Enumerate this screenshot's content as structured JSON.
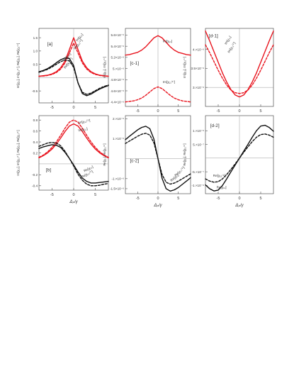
{
  "colors": {
    "red": "#e8141e",
    "black": "#111111",
    "axis": "#333333",
    "ref": "#999999"
  },
  "chart_data": [
    {
      "id": "a",
      "type": "line",
      "label": "[a]",
      "ylabel": "Im[χ₁₁], Im[χ₁₁⁽¹⁾], Re[χ₁₁], Re[χ₁₁⁽¹⁾]",
      "xlabel": "",
      "xlim": [
        -8,
        8
      ],
      "ylim": [
        -0.95,
        1.85
      ],
      "xticks": [
        -5,
        0,
        5
      ],
      "yticks": [
        1.5,
        1.0,
        0.5,
        -0.5
      ],
      "ytick_labels": [
        "1.5",
        "1.0",
        "0.5",
        "-0.5"
      ],
      "refline_y": 0.0,
      "series": [
        {
          "name": "Im[χ₁₁]",
          "color": "red",
          "dash": false,
          "x": [
            -8,
            -7,
            -6,
            -5,
            -4,
            -3,
            -2,
            -1,
            0,
            1,
            2,
            3,
            4,
            5,
            6,
            7,
            8
          ],
          "y": [
            0.05,
            0.07,
            0.09,
            0.14,
            0.22,
            0.37,
            0.62,
            1.05,
            1.5,
            1.05,
            0.62,
            0.37,
            0.22,
            0.14,
            0.09,
            0.07,
            0.05
          ]
        },
        {
          "name": "Im[χ₁₁⁽¹⁾]",
          "color": "red",
          "dash": true,
          "x": [
            -8,
            -7,
            -6,
            -5,
            -4,
            -3,
            -2,
            -1,
            0,
            1,
            2,
            3,
            4,
            5,
            6,
            7,
            8
          ],
          "y": [
            0.05,
            0.06,
            0.08,
            0.12,
            0.19,
            0.32,
            0.55,
            0.92,
            1.3,
            0.92,
            0.55,
            0.32,
            0.19,
            0.12,
            0.08,
            0.06,
            0.05
          ]
        },
        {
          "name": "Re[χ₁₁]",
          "color": "black",
          "dash": false,
          "x": [
            -8,
            -7,
            -6,
            -5,
            -4,
            -3,
            -2,
            -1,
            0,
            1,
            2,
            3,
            4,
            5,
            6,
            7,
            8
          ],
          "y": [
            0.22,
            0.27,
            0.34,
            0.44,
            0.56,
            0.67,
            0.74,
            0.72,
            0.45,
            -0.2,
            -0.6,
            -0.68,
            -0.62,
            -0.52,
            -0.43,
            -0.36,
            -0.3
          ]
        },
        {
          "name": "Re[χ₁₁⁽¹⁾]",
          "color": "black",
          "dash": true,
          "x": [
            -8,
            -7,
            -6,
            -5,
            -4,
            -3,
            -2,
            -1,
            0,
            1,
            2,
            3,
            4,
            5,
            6,
            7,
            8
          ],
          "y": [
            0.2,
            0.25,
            0.31,
            0.4,
            0.5,
            0.6,
            0.66,
            0.63,
            0.38,
            -0.2,
            -0.55,
            -0.63,
            -0.58,
            -0.49,
            -0.4,
            -0.33,
            -0.28
          ]
        }
      ],
      "annotations": [
        {
          "text": "Im[χ₁₁]",
          "x": 0.8,
          "y": 1.35,
          "angle": -50
        },
        {
          "text": "Im[χ₁₁⁽¹⁾]",
          "x": 0.3,
          "y": 1.05,
          "angle": -50
        },
        {
          "text": "Re[χ₁₁]",
          "x": -2.2,
          "y": 0.62,
          "angle": -45
        },
        {
          "text": "Re[χ₁₁⁽¹⁾]",
          "x": -1.9,
          "y": 0.33,
          "angle": -55
        }
      ]
    },
    {
      "id": "c1",
      "type": "line",
      "label": "[c-1]",
      "ylabel": "Im[χ₁₁], Im[χ₁₁⁽¹⁾]",
      "xlabel": "",
      "xlim": [
        -8,
        8
      ],
      "ylim": [
        4.32e-06,
        5.72e-06
      ],
      "xticks": [
        -5,
        0,
        5
      ],
      "yticks": [
        5.6e-06,
        5.4e-06,
        5.2e-06,
        5e-06,
        4.8e-06,
        4.6e-06,
        4.4e-06
      ],
      "ytick_labels": [
        "5.6×10⁻⁶",
        "5.4×10⁻⁶",
        "5.2×10⁻⁶",
        "5.×10⁻⁶",
        "4.8×10⁻⁶",
        "4.6×10⁻⁶",
        "4.4×10⁻⁶"
      ],
      "refline_y": null,
      "series": [
        {
          "name": "Im[χ₁₁]",
          "color": "red",
          "dash": false,
          "x": [
            -8,
            -7,
            -6,
            -5,
            -4,
            -3,
            -2,
            -1,
            0,
            1,
            2,
            3,
            4,
            5,
            6,
            7,
            8
          ],
          "y": [
            5.24e-06,
            5.25e-06,
            5.27e-06,
            5.29e-06,
            5.33e-06,
            5.39e-06,
            5.47e-06,
            5.55e-06,
            5.59e-06,
            5.55e-06,
            5.47e-06,
            5.39e-06,
            5.33e-06,
            5.29e-06,
            5.27e-06,
            5.25e-06,
            5.24e-06
          ]
        },
        {
          "name": "Im[χ₁₁⁽¹⁾]",
          "color": "red",
          "dash": true,
          "x": [
            -8,
            -7,
            -6,
            -5,
            -4,
            -3,
            -2,
            -1,
            0,
            1,
            2,
            3,
            4,
            5,
            6,
            7,
            8
          ],
          "y": [
            4.4e-06,
            4.41e-06,
            4.42e-06,
            4.44e-06,
            4.47e-06,
            4.52e-06,
            4.58e-06,
            4.64e-06,
            4.67e-06,
            4.64e-06,
            4.58e-06,
            4.52e-06,
            4.47e-06,
            4.44e-06,
            4.42e-06,
            4.41e-06,
            4.4e-06
          ]
        }
      ],
      "annotations": [
        {
          "text": "Im[χ₁₁]",
          "x": 1.2,
          "y": 5.47e-06,
          "angle": 0
        },
        {
          "text": "Im[χ₁₁⁽¹⁾]",
          "x": 1.2,
          "y": 4.74e-06,
          "angle": 0
        }
      ]
    },
    {
      "id": "d1",
      "type": "line",
      "label": "[d-1]",
      "ylabel": "Im[χ₁₁], Im[χ₁₁⁽¹⁾]",
      "xlabel": "",
      "xlim": [
        -8,
        8
      ],
      "ylim": [
        2.5e-06,
        4.55e-06
      ],
      "xticks": [
        -5,
        0,
        5
      ],
      "yticks": [
        4e-06,
        3.5e-06,
        3e-06
      ],
      "ytick_labels": [
        "4.×10⁻⁶",
        "3.5×10⁻⁶",
        "3.×10⁻⁶"
      ],
      "refline_y": 3e-06,
      "series": [
        {
          "name": "Im[χ₁₁]",
          "color": "red",
          "dash": false,
          "x": [
            -8,
            -7,
            -6,
            -5,
            -4,
            -3,
            -2,
            -1,
            0,
            1,
            2,
            3,
            4,
            5,
            6,
            7,
            8
          ],
          "y": [
            4.48e-06,
            4.22e-06,
            3.94e-06,
            3.66e-06,
            3.38e-06,
            3.14e-06,
            2.94e-06,
            2.8e-06,
            2.75e-06,
            2.8e-06,
            2.94e-06,
            3.14e-06,
            3.38e-06,
            3.66e-06,
            3.94e-06,
            4.22e-06,
            4.48e-06
          ]
        },
        {
          "name": "Im[χ₁₁⁽¹⁾]",
          "color": "red",
          "dash": true,
          "x": [
            -8,
            -7,
            -6,
            -5,
            -4,
            -3,
            -2,
            -1,
            0,
            1,
            2,
            3,
            4,
            5,
            6,
            7,
            8
          ],
          "y": [
            4.12e-06,
            3.91e-06,
            3.68e-06,
            3.45e-06,
            3.24e-06,
            3.06e-06,
            2.93e-06,
            2.86e-06,
            2.84e-06,
            2.86e-06,
            2.93e-06,
            3.06e-06,
            3.24e-06,
            3.45e-06,
            3.68e-06,
            3.91e-06,
            4.12e-06
          ]
        }
      ],
      "annotations": [
        {
          "text": "Im[χ₁₁]",
          "x": -3.1,
          "y": 4.12e-06,
          "angle": -58
        },
        {
          "text": "Im[χ₁₁⁽¹⁾]",
          "x": -2.4,
          "y": 3.9e-06,
          "angle": -58
        }
      ]
    },
    {
      "id": "b",
      "type": "line",
      "label": "[b]",
      "ylabel": "Im[χ₁₂], Im[χ₁₂⁽¹⁾], Re[χ₁₂], Re[χ₁₂⁽¹⁾]",
      "xlabel": "Δₚ/γ",
      "xlim": [
        -8,
        8
      ],
      "ylim": [
        -0.48,
        0.88
      ],
      "xticks": [
        -5,
        0,
        5
      ],
      "yticks": [
        0.8,
        0.6,
        0.4,
        0.2,
        -0.2,
        -0.4
      ],
      "ytick_labels": [
        "0.8",
        "0.6",
        "0.4",
        "0.2",
        "-0.2",
        "-0.4"
      ],
      "refline_y": 0.0,
      "series": [
        {
          "name": "Im[χ₁₂⁽¹⁾]",
          "color": "red",
          "dash": true,
          "x": [
            -8,
            -7,
            -6,
            -5,
            -4,
            -3,
            -2,
            -1,
            0,
            1,
            2,
            3,
            4,
            5,
            6,
            7,
            8
          ],
          "y": [
            0.12,
            0.16,
            0.22,
            0.3,
            0.4,
            0.52,
            0.65,
            0.76,
            0.8,
            0.76,
            0.65,
            0.52,
            0.4,
            0.3,
            0.22,
            0.16,
            0.12
          ]
        },
        {
          "name": "Im[χ₁₂]",
          "color": "red",
          "dash": false,
          "x": [
            -8,
            -7,
            -6,
            -5,
            -4,
            -3,
            -2,
            -1,
            0,
            1,
            2,
            3,
            4,
            5,
            6,
            7,
            8
          ],
          "y": [
            0.11,
            0.15,
            0.2,
            0.27,
            0.36,
            0.47,
            0.59,
            0.69,
            0.73,
            0.69,
            0.59,
            0.47,
            0.36,
            0.27,
            0.2,
            0.15,
            0.11
          ]
        },
        {
          "name": "Re[χ₁₂]",
          "color": "black",
          "dash": false,
          "x": [
            -8,
            -7,
            -6,
            -5,
            -4,
            -3,
            -2,
            -1,
            0,
            1,
            2,
            3,
            4,
            5,
            6,
            7,
            8
          ],
          "y": [
            0.28,
            0.31,
            0.33,
            0.35,
            0.34,
            0.3,
            0.21,
            0.1,
            -0.02,
            -0.15,
            -0.26,
            -0.32,
            -0.35,
            -0.35,
            -0.34,
            -0.33,
            -0.32
          ]
        },
        {
          "name": "Re[χ₁₂⁽¹⁾]",
          "color": "black",
          "dash": true,
          "x": [
            -8,
            -7,
            -6,
            -5,
            -4,
            -3,
            -2,
            -1,
            0,
            1,
            2,
            3,
            4,
            5,
            6,
            7,
            8
          ],
          "y": [
            0.32,
            0.35,
            0.38,
            0.39,
            0.38,
            0.33,
            0.23,
            0.1,
            -0.04,
            -0.19,
            -0.3,
            -0.37,
            -0.4,
            -0.4,
            -0.39,
            -0.37,
            -0.36
          ]
        }
      ],
      "annotations": [
        {
          "text": "Im[χ₁₂⁽¹⁾]",
          "x": 1.1,
          "y": 0.73,
          "angle": -12
        },
        {
          "text": "Im[χ₁₂]",
          "x": 1.1,
          "y": 0.59,
          "angle": -12
        },
        {
          "text": "Re[χ₁₂]",
          "x": 2.5,
          "y": -0.15,
          "angle": -28
        },
        {
          "text": "Re[χ₁₂⁽¹⁾]",
          "x": 1.9,
          "y": -0.26,
          "angle": -28
        }
      ]
    },
    {
      "id": "c2",
      "type": "line",
      "label": "[c-2]",
      "ylabel": "Re[χ₁₁], Re[χ₁₁⁽¹⁾]",
      "xlabel": "Δₚ/γ",
      "xlim": [
        -8,
        8
      ],
      "ylim": [
        -1.75e-06,
        2.15e-06
      ],
      "xticks": [
        -5,
        0,
        5
      ],
      "yticks": [
        2e-06,
        1e-06,
        -1e-06,
        -1.5e-06
      ],
      "ytick_labels": [
        "2.×10⁻⁶",
        "1.×10⁻⁶",
        "-1.×10⁻⁶",
        "-1.5×10⁻⁶"
      ],
      "refline_y": 0.0,
      "series": [
        {
          "name": "Re[χ₁₁]",
          "color": "black",
          "dash": false,
          "x": [
            -8,
            -7,
            -6,
            -5,
            -4,
            -3,
            -2,
            -1,
            0,
            1,
            2,
            3,
            4,
            5,
            6,
            7,
            8
          ],
          "y": [
            9.5e-07,
            1.12e-06,
            1.28e-06,
            1.44e-06,
            1.56e-06,
            1.62e-06,
            1.5e-06,
            9.8e-07,
            0.0,
            -9.8e-07,
            -1.5e-06,
            -1.62e-06,
            -1.56e-06,
            -1.44e-06,
            -1.28e-06,
            -1.12e-06,
            -9.5e-07
          ]
        },
        {
          "name": "Re[χ₁₁⁽¹⁾]",
          "color": "black",
          "dash": true,
          "x": [
            -8,
            -7,
            -6,
            -5,
            -4,
            -3,
            -2,
            -1,
            0,
            1,
            2,
            3,
            4,
            5,
            6,
            7,
            8
          ],
          "y": [
            7.6e-07,
            8.8e-07,
            1e-06,
            1.12e-06,
            1.22e-06,
            1.27e-06,
            1.18e-06,
            7.9e-07,
            0.0,
            -7.9e-07,
            -1.18e-06,
            -1.27e-06,
            -1.22e-06,
            -1.12e-06,
            -1e-06,
            -8.8e-07,
            -7.6e-07
          ]
        }
      ],
      "annotations": [
        {
          "text": "Re[χ₁₁⁽¹⁾]",
          "x": 4.4,
          "y": -9e-07,
          "angle": -45
        },
        {
          "text": "Re[χ₁₁]",
          "x": 3.3,
          "y": -1.15e-06,
          "angle": -40
        }
      ]
    },
    {
      "id": "d2",
      "type": "line",
      "label": "[d-2]",
      "ylabel": "Re[χ₁₁], Re[χ₁₁⁽¹⁾]",
      "xlabel": "Δₚ/γ",
      "xlim": [
        -8,
        8
      ],
      "ylim": [
        -1.3e-06,
        1.55e-06
      ],
      "xticks": [
        -5,
        0,
        5
      ],
      "yticks": [
        1e-06,
        5e-07,
        -5e-07,
        -1e-06
      ],
      "ytick_labels": [
        "1.×10⁻⁶",
        "5.×10⁻⁷",
        "-5.×10⁻⁷",
        "-1.×10⁻⁶"
      ],
      "refline_y": 0.0,
      "series": [
        {
          "name": "Re[χ₁₁]",
          "color": "black",
          "dash": false,
          "x": [
            -8,
            -7,
            -6,
            -5,
            -4,
            -3,
            -2,
            -1,
            0,
            1,
            2,
            3,
            4,
            5,
            6,
            7,
            8
          ],
          "y": [
            -9.8e-07,
            -1.12e-06,
            -1.2e-06,
            -1.17e-06,
            -1e-06,
            -7.6e-07,
            -5e-07,
            -2.5e-07,
            0.0,
            2.5e-07,
            5e-07,
            7.6e-07,
            1e-06,
            1.17e-06,
            1.2e-06,
            1.12e-06,
            9.8e-07
          ]
        },
        {
          "name": "Re[χ₁₁⁽¹⁾]",
          "color": "black",
          "dash": true,
          "x": [
            -8,
            -7,
            -6,
            -5,
            -4,
            -3,
            -2,
            -1,
            0,
            1,
            2,
            3,
            4,
            5,
            6,
            7,
            8
          ],
          "y": [
            -7.6e-07,
            -8.4e-07,
            -8.8e-07,
            -8.6e-07,
            -7.6e-07,
            -6e-07,
            -4.1e-07,
            -2.1e-07,
            0.0,
            2.1e-07,
            4.1e-07,
            6e-07,
            7.6e-07,
            8.6e-07,
            8.8e-07,
            8.4e-07,
            7.6e-07
          ]
        }
      ],
      "annotations": [
        {
          "text": "Re[χ₁₁⁽¹⁾]",
          "x": -6.2,
          "y": -6.8e-07,
          "angle": 0
        },
        {
          "text": "Re[χ₁₁]",
          "x": -5.4,
          "y": -1.1e-06,
          "angle": 0
        }
      ]
    }
  ]
}
